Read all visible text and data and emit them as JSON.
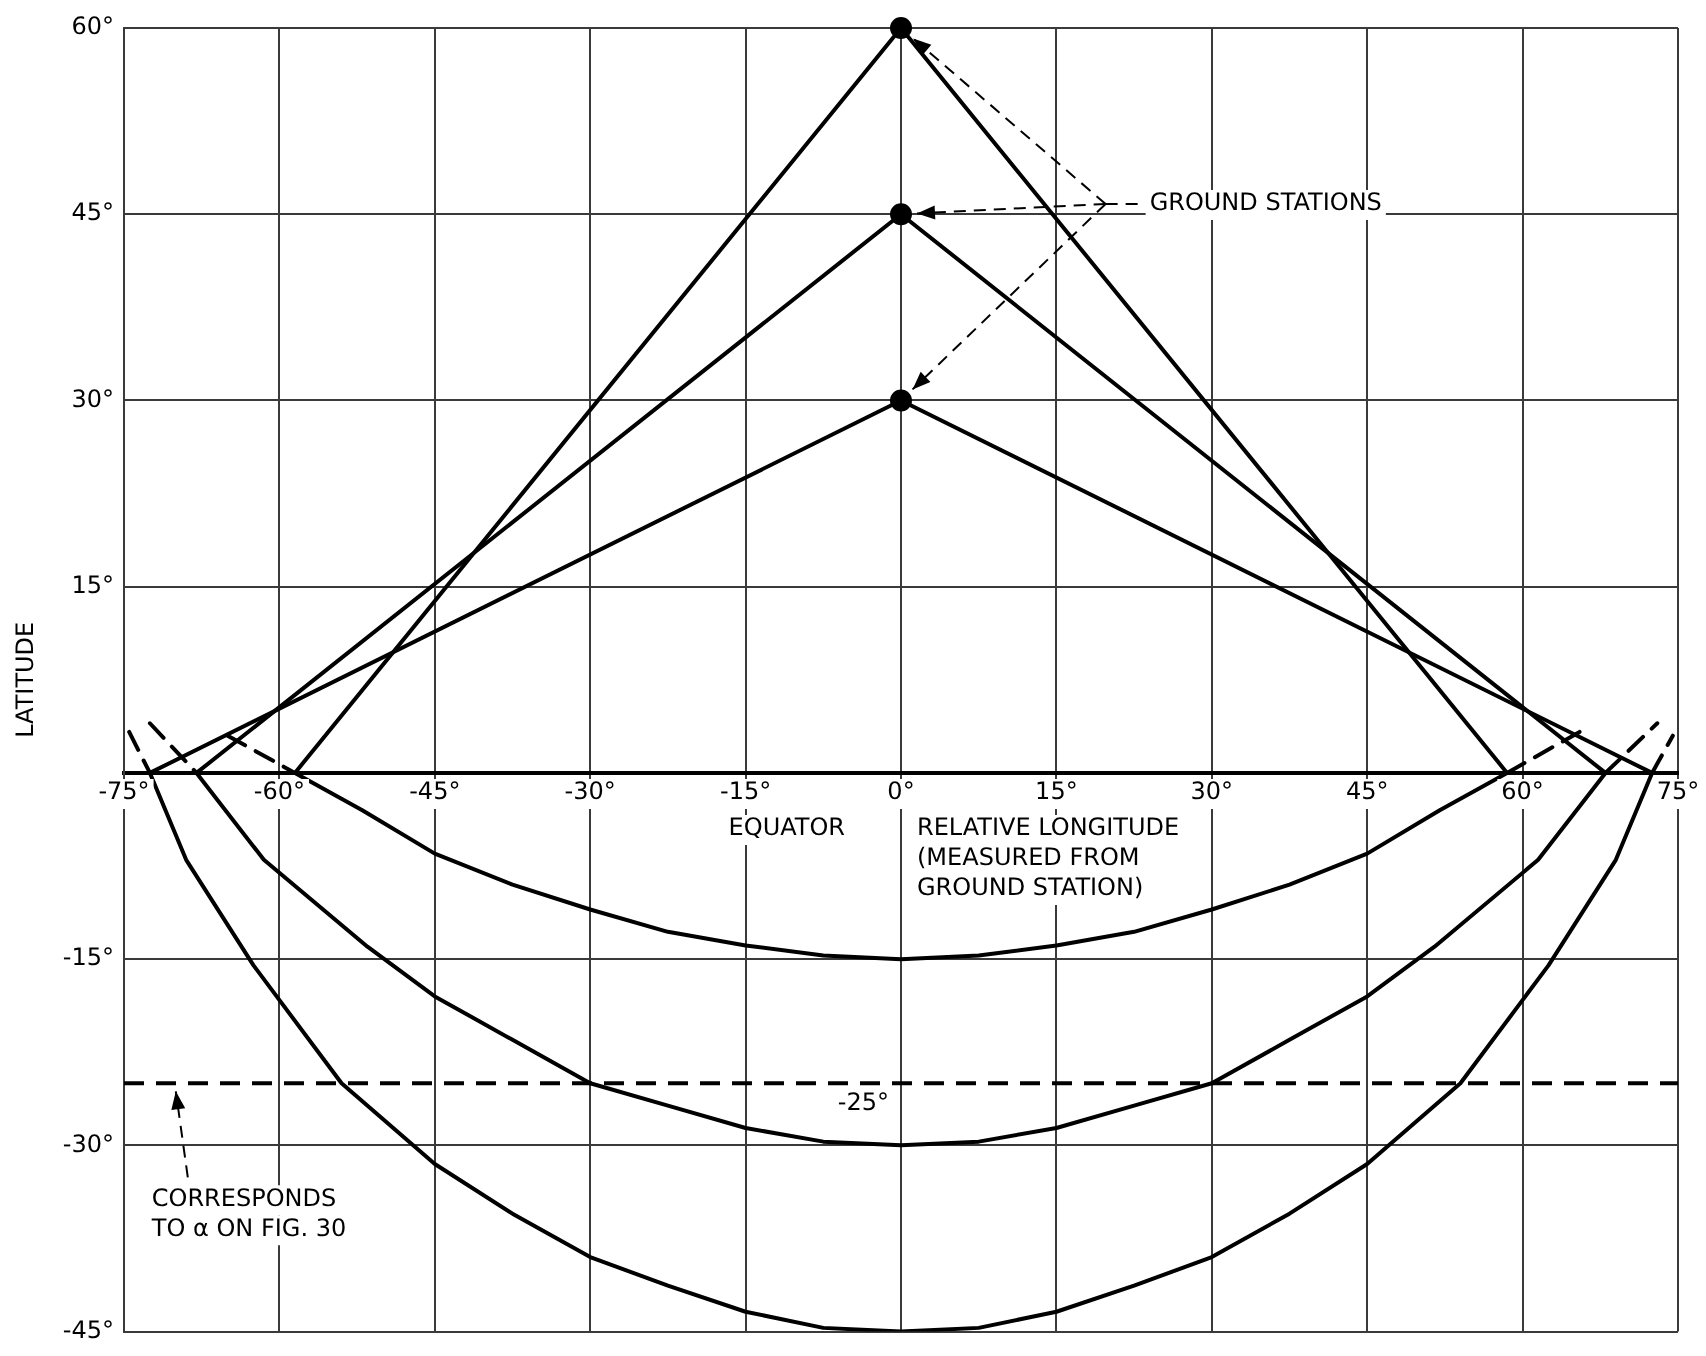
{
  "chart_data": {
    "type": "line",
    "xlabel": "RELATIVE LONGITUDE (MEASURED FROM GROUND STATION)",
    "ylabel": "LATITUDE",
    "annotations": [
      "GROUND STATIONS",
      "EQUATOR",
      {
        "text": "CORRESPONDS TO α ON FIG. 30",
        "x": -70,
        "y": -25
      }
    ],
    "xlim": [
      -75,
      75
    ],
    "xticks": [
      {
        "value": -75,
        "label": "-75°"
      },
      {
        "value": -60,
        "label": "-60°"
      },
      {
        "value": -45,
        "label": "-45°"
      },
      {
        "value": -30,
        "label": "-30°"
      },
      {
        "value": -15,
        "label": "-15°"
      },
      {
        "value": 0,
        "label": "0°"
      },
      {
        "value": 15,
        "label": "15°"
      },
      {
        "value": 30,
        "label": "30°"
      },
      {
        "value": 45,
        "label": "45°"
      },
      {
        "value": 60,
        "label": "60°"
      },
      {
        "value": 75,
        "label": "75°"
      }
    ],
    "ylim": [
      -45,
      60
    ],
    "yticks": [
      {
        "value": -45,
        "label": "-45°"
      },
      {
        "value": -30,
        "label": "-30°"
      },
      {
        "value": -15,
        "label": "-15°"
      },
      {
        "value": 15,
        "label": "15°"
      },
      {
        "value": 30,
        "label": "30°"
      },
      {
        "value": 45,
        "label": "45°"
      },
      {
        "value": 60,
        "label": "60°"
      }
    ],
    "grid": true,
    "legend": false,
    "marker": "none",
    "line_style": "solid",
    "ref_lines": [
      {
        "axis": "y",
        "value": -25,
        "label": "-25°",
        "color": "#000000",
        "line_style": "dashed"
      }
    ],
    "series": [
      {
        "color": "#000000",
        "x": [
          -58.5,
          0,
          58.5
        ],
        "values": [
          0,
          60,
          0
        ]
      },
      {
        "color": "#000000",
        "x": [
          -68,
          0,
          68
        ],
        "values": [
          0,
          45,
          0
        ]
      },
      {
        "color": "#000000",
        "x": [
          -72.5,
          0,
          72.5
        ],
        "values": [
          0,
          30,
          0
        ]
      },
      {
        "color": "#000000",
        "x": [
          -58.5,
          -52,
          -45,
          -37.5,
          -30,
          -22.5,
          -15,
          -7.5,
          0,
          7.5,
          15,
          22.5,
          30,
          37.5,
          45,
          52,
          58.5
        ],
        "values": [
          0,
          -3,
          -6.5,
          -9,
          -11,
          -12.8,
          -13.9,
          -14.7,
          -15,
          -14.7,
          -13.9,
          -12.8,
          -11,
          -9,
          -6.5,
          -3,
          0
        ]
      },
      {
        "color": "#000000",
        "x": [
          -68,
          -61.5,
          -51.5,
          -45,
          -37.5,
          -30,
          -22.5,
          -15,
          -7.5,
          0,
          7.5,
          15,
          22.5,
          30,
          37.5,
          45,
          51.5,
          61.5,
          68
        ],
        "values": [
          0,
          -7,
          -14,
          -18,
          -21.5,
          -25,
          -26.8,
          -28.6,
          -29.7,
          -30,
          -29.7,
          -28.6,
          -26.8,
          -25,
          -21.5,
          -18,
          -14,
          -7,
          0
        ]
      },
      {
        "color": "#000000",
        "x": [
          -72.5,
          -69,
          -62.5,
          -54,
          -45,
          -37.5,
          -30,
          -22.5,
          -15,
          -7.5,
          0,
          7.5,
          15,
          22.5,
          30,
          37.5,
          45,
          54,
          62.5,
          69,
          72.5
        ],
        "values": [
          0,
          -7,
          -15.5,
          -25,
          -31.5,
          -35.5,
          -39,
          -41.3,
          -43.4,
          -44.7,
          -45,
          -44.7,
          -43.4,
          -41.3,
          -39,
          -35.5,
          -31.5,
          -25,
          -15.5,
          -7,
          0
        ]
      },
      {
        "color": "#000000",
        "line_style": "dashed",
        "x": [
          -65,
          -58.5
        ],
        "values": [
          3,
          0
        ]
      },
      {
        "color": "#000000",
        "line_style": "dashed",
        "x": [
          58.5,
          65.5
        ],
        "values": [
          0,
          3.3
        ]
      },
      {
        "color": "#000000",
        "line_style": "dashed",
        "x": [
          -72.5,
          -68
        ],
        "values": [
          4,
          0
        ]
      },
      {
        "color": "#000000",
        "line_style": "dashed",
        "x": [
          68,
          73
        ],
        "values": [
          0,
          4
        ]
      },
      {
        "color": "#000000",
        "line_style": "dashed",
        "x": [
          -74.5,
          -72.5
        ],
        "values": [
          3.3,
          0
        ]
      },
      {
        "color": "#000000",
        "line_style": "dashed",
        "x": [
          72.5,
          74.5
        ],
        "values": [
          0,
          3
        ]
      },
      {
        "type": "scatter",
        "marker": "circle",
        "color": "#000000",
        "x": [
          0,
          0,
          0
        ],
        "values": [
          60,
          45,
          30
        ]
      }
    ]
  }
}
